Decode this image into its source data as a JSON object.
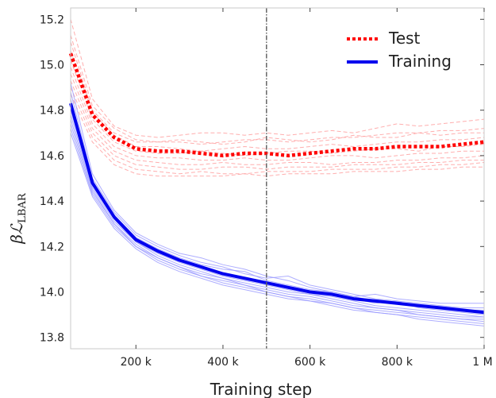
{
  "chart_data": {
    "type": "line",
    "xlabel": "Training step",
    "ylabel_main": "βℒ",
    "ylabel_sub": "LBAR",
    "xlim": [
      50000,
      1000000
    ],
    "ylim": [
      13.75,
      15.25
    ],
    "x_ticks": [
      200000,
      400000,
      600000,
      800000,
      1000000
    ],
    "x_tick_labels": [
      "200 k",
      "400 k",
      "600 k",
      "800 k",
      "1 M"
    ],
    "y_ticks": [
      13.8,
      14.0,
      14.2,
      14.4,
      14.6,
      14.8,
      15.0,
      15.2
    ],
    "y_tick_labels": [
      "13.8",
      "14.0",
      "14.2",
      "14.4",
      "14.6",
      "14.8",
      "15.0",
      "15.2"
    ],
    "grid": false,
    "legend_position": "top-right",
    "vline_x": 500000,
    "x": [
      50000,
      100000,
      150000,
      200000,
      250000,
      300000,
      350000,
      400000,
      450000,
      500000,
      550000,
      600000,
      650000,
      700000,
      750000,
      800000,
      850000,
      900000,
      950000,
      1000000
    ],
    "series": [
      {
        "name": "Test",
        "style": "dotted",
        "color": "#ff0000",
        "values": [
          15.05,
          14.78,
          14.68,
          14.63,
          14.62,
          14.62,
          14.61,
          14.6,
          14.61,
          14.61,
          14.6,
          14.61,
          14.62,
          14.63,
          14.63,
          14.64,
          14.64,
          14.64,
          14.65,
          14.66
        ]
      },
      {
        "name": "Training",
        "style": "solid",
        "color": "#0000ee",
        "values": [
          14.83,
          14.48,
          14.33,
          14.23,
          14.18,
          14.14,
          14.11,
          14.08,
          14.06,
          14.04,
          14.02,
          14.0,
          13.99,
          13.97,
          13.96,
          13.95,
          13.94,
          13.93,
          13.92,
          13.91
        ]
      }
    ],
    "test_runs": [
      [
        15.2,
        14.85,
        14.73,
        14.69,
        14.68,
        14.69,
        14.7,
        14.7,
        14.69,
        14.7,
        14.69,
        14.7,
        14.71,
        14.7,
        14.72,
        14.74,
        14.73,
        14.74,
        14.75,
        14.76
      ],
      [
        15.13,
        14.82,
        14.72,
        14.67,
        14.66,
        14.66,
        14.65,
        14.66,
        14.67,
        14.67,
        14.66,
        14.67,
        14.68,
        14.68,
        14.69,
        14.7,
        14.7,
        14.71,
        14.71,
        14.72
      ],
      [
        15.1,
        14.8,
        14.7,
        14.66,
        14.66,
        14.67,
        14.66,
        14.65,
        14.66,
        14.68,
        14.67,
        14.66,
        14.67,
        14.69,
        14.68,
        14.68,
        14.7,
        14.69,
        14.7,
        14.7
      ],
      [
        15.06,
        14.79,
        14.69,
        14.64,
        14.64,
        14.63,
        14.62,
        14.63,
        14.64,
        14.63,
        14.63,
        14.64,
        14.65,
        14.64,
        14.65,
        14.66,
        14.66,
        14.67,
        14.67,
        14.68
      ],
      [
        15.02,
        14.76,
        14.66,
        14.62,
        14.61,
        14.61,
        14.62,
        14.61,
        14.6,
        14.61,
        14.62,
        14.62,
        14.61,
        14.62,
        14.63,
        14.63,
        14.62,
        14.64,
        14.64,
        14.65
      ],
      [
        14.99,
        14.74,
        14.64,
        14.6,
        14.59,
        14.59,
        14.58,
        14.58,
        14.59,
        14.58,
        14.58,
        14.59,
        14.6,
        14.6,
        14.59,
        14.6,
        14.61,
        14.61,
        14.62,
        14.62
      ],
      [
        14.96,
        14.72,
        14.62,
        14.58,
        14.57,
        14.56,
        14.56,
        14.57,
        14.56,
        14.56,
        14.57,
        14.57,
        14.56,
        14.57,
        14.57,
        14.58,
        14.58,
        14.59,
        14.59,
        14.6
      ],
      [
        14.93,
        14.7,
        14.6,
        14.56,
        14.55,
        14.54,
        14.54,
        14.55,
        14.55,
        14.54,
        14.55,
        14.55,
        14.55,
        14.56,
        14.56,
        14.56,
        14.57,
        14.57,
        14.58,
        14.58
      ],
      [
        14.9,
        14.68,
        14.58,
        14.54,
        14.53,
        14.52,
        14.53,
        14.52,
        14.52,
        14.53,
        14.53,
        14.53,
        14.54,
        14.54,
        14.54,
        14.55,
        14.55,
        14.56,
        14.56,
        14.57
      ],
      [
        14.87,
        14.66,
        14.56,
        14.52,
        14.51,
        14.51,
        14.51,
        14.51,
        14.52,
        14.51,
        14.52,
        14.52,
        14.52,
        14.53,
        14.53,
        14.53,
        14.54,
        14.54,
        14.55,
        14.55
      ]
    ],
    "training_runs": [
      [
        14.92,
        14.52,
        14.36,
        14.26,
        14.21,
        14.17,
        14.15,
        14.12,
        14.1,
        14.07,
        14.05,
        14.02,
        14.0,
        13.98,
        13.99,
        13.97,
        13.96,
        13.95,
        13.95,
        13.95
      ],
      [
        14.88,
        14.5,
        14.35,
        14.25,
        14.2,
        14.16,
        14.13,
        14.11,
        14.08,
        14.06,
        14.07,
        14.03,
        14.01,
        13.99,
        13.97,
        13.96,
        13.95,
        13.94,
        13.93,
        13.93
      ],
      [
        14.85,
        14.49,
        14.34,
        14.24,
        14.19,
        14.15,
        14.12,
        14.1,
        14.09,
        14.05,
        14.03,
        14.01,
        14.0,
        13.98,
        13.96,
        13.95,
        13.94,
        13.93,
        13.92,
        13.92
      ],
      [
        14.82,
        14.48,
        14.33,
        14.23,
        14.18,
        14.14,
        14.11,
        14.08,
        14.06,
        14.04,
        14.02,
        14.0,
        13.99,
        13.97,
        13.95,
        13.96,
        13.93,
        13.92,
        13.91,
        13.9
      ],
      [
        14.8,
        14.47,
        14.32,
        14.22,
        14.17,
        14.13,
        14.1,
        14.07,
        14.05,
        14.03,
        14.01,
        13.99,
        13.98,
        13.96,
        13.94,
        13.93,
        13.92,
        13.91,
        13.9,
        13.89
      ],
      [
        14.78,
        14.46,
        14.31,
        14.22,
        14.16,
        14.12,
        14.09,
        14.06,
        14.04,
        14.02,
        14.0,
        13.99,
        13.97,
        13.95,
        13.93,
        13.92,
        13.91,
        13.9,
        13.89,
        13.89
      ],
      [
        14.76,
        14.45,
        14.3,
        14.21,
        14.15,
        14.11,
        14.08,
        14.06,
        14.03,
        14.01,
        13.99,
        13.98,
        13.96,
        13.94,
        13.93,
        13.92,
        13.9,
        13.89,
        13.88,
        13.88
      ],
      [
        14.74,
        14.44,
        14.3,
        14.2,
        14.15,
        14.11,
        14.07,
        14.05,
        14.03,
        14.0,
        13.98,
        13.97,
        13.95,
        13.93,
        13.92,
        13.91,
        13.9,
        13.89,
        13.88,
        13.87
      ],
      [
        14.72,
        14.43,
        14.29,
        14.2,
        14.14,
        14.1,
        14.07,
        14.04,
        14.02,
        14.0,
        13.98,
        13.96,
        13.95,
        13.93,
        13.91,
        13.9,
        13.89,
        13.88,
        13.87,
        13.86
      ],
      [
        14.7,
        14.42,
        14.28,
        14.19,
        14.13,
        14.09,
        14.06,
        14.03,
        14.01,
        13.99,
        13.97,
        13.96,
        13.94,
        13.92,
        13.91,
        13.9,
        13.88,
        13.87,
        13.86,
        13.85
      ]
    ]
  }
}
